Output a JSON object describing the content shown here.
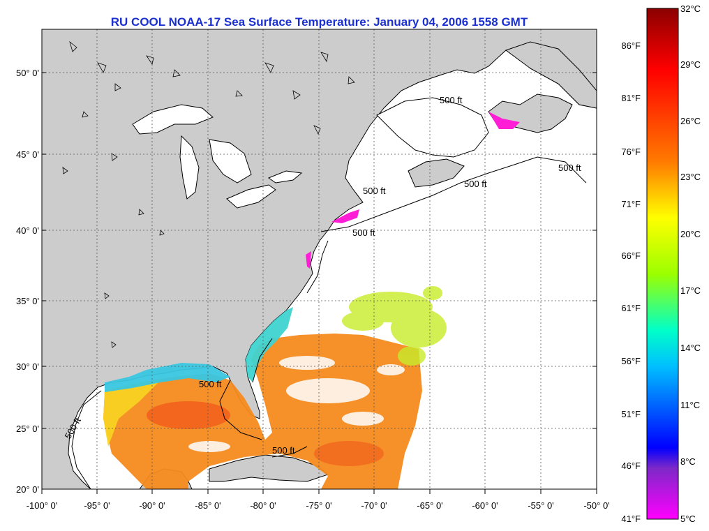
{
  "title": "RU COOL  NOAA-17  Sea Surface Temperature:  January 04, 2006 1558 GMT",
  "map": {
    "lat_ticks": [
      "50° 0'",
      "45° 0'",
      "40° 0'",
      "35° 0'",
      "30° 0'",
      "25° 0'",
      "20° 0'"
    ],
    "lon_ticks": [
      "-100° 0'",
      "-95° 0'",
      "-90° 0'",
      "-85° 0'",
      "-80° 0'",
      "-75° 0'",
      "-70° 0'",
      "-65° 0'",
      "-60° 0'",
      "-55° 0'",
      "-50° 0'"
    ],
    "contour_label": "500 ft",
    "colors": {
      "land": "#cccccc",
      "ocean": "#ffffff",
      "grid": "#555555"
    }
  },
  "colorbar": {
    "celsius_labels": [
      "32°C",
      "29°C",
      "26°C",
      "23°C",
      "20°C",
      "17°C",
      "14°C",
      "11°C",
      "8°C",
      "5°C"
    ],
    "fahrenheit_labels": [
      "86°F",
      "81°F",
      "76°F",
      "71°F",
      "66°F",
      "61°F",
      "56°F",
      "51°F",
      "46°F",
      "41°F"
    ],
    "stops": [
      "#8b0000",
      "#ff0000",
      "#ff6a00",
      "#ffff00",
      "#9cff00",
      "#00ffff",
      "#0000ff",
      "#7d28c8",
      "#ff00ff"
    ]
  }
}
